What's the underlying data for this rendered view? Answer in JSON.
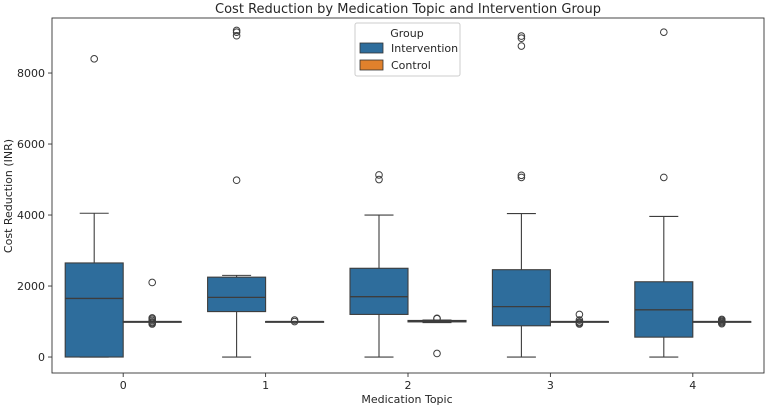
{
  "chart_data": {
    "type": "boxplot",
    "title": "Cost Reduction by Medication Topic and Intervention Group",
    "xlabel": "Medication Topic",
    "ylabel": "Cost Reduction (INR)",
    "categories": [
      "0",
      "1",
      "2",
      "3",
      "4"
    ],
    "ylim": [
      -450,
      9550
    ],
    "yticks": [
      0,
      2000,
      4000,
      6000,
      8000
    ],
    "ytick_labels": [
      "0",
      "2000",
      "4000",
      "6000",
      "8000"
    ],
    "legend": {
      "title": "Group",
      "position": "top-center"
    },
    "series": [
      {
        "name": "Intervention",
        "color": "#2e6d9c",
        "boxes": [
          {
            "whisker_low": 0,
            "q1": 0,
            "median": 1650,
            "q3": 2650,
            "whisker_high": 4050,
            "outliers": [
              8400
            ]
          },
          {
            "whisker_low": 0,
            "q1": 1280,
            "median": 1680,
            "q3": 2250,
            "whisker_high": 2300,
            "outliers": [
              4980,
              9050,
              9150,
              9200
            ]
          },
          {
            "whisker_low": 0,
            "q1": 1200,
            "median": 1700,
            "q3": 2500,
            "whisker_high": 4000,
            "outliers": [
              5000,
              5130
            ]
          },
          {
            "whisker_low": 0,
            "q1": 880,
            "median": 1420,
            "q3": 2460,
            "whisker_high": 4040,
            "outliers": [
              5060,
              5120,
              8760,
              8980,
              9040
            ]
          },
          {
            "whisker_low": 0,
            "q1": 560,
            "median": 1330,
            "q3": 2120,
            "whisker_high": 3960,
            "outliers": [
              5060,
              9150
            ]
          }
        ]
      },
      {
        "name": "Control",
        "color": "#e1812c",
        "boxes": [
          {
            "whisker_low": 1000,
            "q1": 1000,
            "median": 1000,
            "q3": 1000,
            "whisker_high": 1000,
            "outliers": [
              930,
              960,
              990,
              1030,
              1070,
              1100,
              2100
            ]
          },
          {
            "whisker_low": 1000,
            "q1": 1000,
            "median": 1000,
            "q3": 1000,
            "whisker_high": 1000,
            "outliers": [
              1000,
              1040
            ]
          },
          {
            "whisker_low": 970,
            "q1": 990,
            "median": 1000,
            "q3": 1030,
            "whisker_high": 1040,
            "outliers": [
              100,
              1080,
              1090
            ]
          },
          {
            "whisker_low": 1000,
            "q1": 1000,
            "median": 1000,
            "q3": 1000,
            "whisker_high": 1000,
            "outliers": [
              930,
              960,
              990,
              1040,
              1200
            ]
          },
          {
            "whisker_low": 1000,
            "q1": 1000,
            "median": 1000,
            "q3": 1000,
            "whisker_high": 1000,
            "outliers": [
              940,
              970,
              1000,
              1030,
              1060
            ]
          }
        ]
      }
    ]
  }
}
